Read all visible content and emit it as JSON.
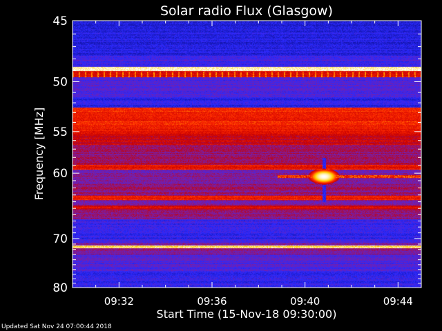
{
  "chart_data": {
    "type": "heatmap",
    "title": "Solar radio Flux (Glasgow)",
    "xlabel": "Start Time (15-Nov-18 09:30:00)",
    "ylabel": "Frequency [MHz]",
    "x_ticks": [
      "09:32",
      "09:36",
      "09:40",
      "09:44"
    ],
    "x_tick_minutes": [
      2,
      6,
      10,
      14
    ],
    "x_range_minutes": [
      0,
      15
    ],
    "y_ticks": [
      45,
      50,
      55,
      60,
      70,
      80
    ],
    "y_range_mhz": [
      45,
      80
    ],
    "y_scale": "reciprocal",
    "colormap": [
      "#10109a",
      "#2a2aff",
      "#7a1fa8",
      "#c80000",
      "#ff2a00",
      "#ffd000",
      "#ffffff"
    ],
    "background_level": 0.28,
    "bands": [
      {
        "f1": 45.0,
        "f2": 45.6,
        "level": 0.08
      },
      {
        "f1": 45.6,
        "f2": 47.8,
        "level": 0.12
      },
      {
        "f1": 47.8,
        "f2": 48.7,
        "level": 0.22
      },
      {
        "f1": 48.7,
        "f2": 49.1,
        "level": 0.95
      },
      {
        "f1": 49.1,
        "f2": 49.6,
        "level": 0.55
      },
      {
        "f1": 49.6,
        "f2": 51.5,
        "level": 0.24
      },
      {
        "f1": 51.5,
        "f2": 52.5,
        "level": 0.15
      },
      {
        "f1": 52.5,
        "f2": 55.3,
        "level": 0.62
      },
      {
        "f1": 55.3,
        "f2": 56.5,
        "level": 0.5
      },
      {
        "f1": 56.5,
        "f2": 59.0,
        "level": 0.4
      },
      {
        "f1": 59.0,
        "f2": 59.6,
        "level": 0.6
      },
      {
        "f1": 59.6,
        "f2": 61.5,
        "level": 0.32
      },
      {
        "f1": 61.5,
        "f2": 63.2,
        "level": 0.38
      },
      {
        "f1": 63.2,
        "f2": 63.8,
        "level": 0.6
      },
      {
        "f1": 63.8,
        "f2": 64.6,
        "level": 0.35
      },
      {
        "f1": 64.6,
        "f2": 65.2,
        "level": 0.55
      },
      {
        "f1": 65.2,
        "f2": 66.8,
        "level": 0.38
      },
      {
        "f1": 66.8,
        "f2": 70.8,
        "level": 0.18
      },
      {
        "f1": 70.8,
        "f2": 71.3,
        "level": 0.3
      },
      {
        "f1": 71.3,
        "f2": 71.8,
        "level": 0.9
      },
      {
        "f1": 71.8,
        "f2": 73.0,
        "level": 0.36
      },
      {
        "f1": 73.0,
        "f2": 76.5,
        "level": 0.25
      },
      {
        "f1": 76.5,
        "f2": 80.0,
        "level": 0.18
      }
    ],
    "burst": {
      "time_min": 10.8,
      "freq_mhz": 60.4,
      "level": 1.0,
      "width_min": 0.5,
      "height_mhz": 0.8
    },
    "burst_trail": {
      "f1": 60.2,
      "f2": 60.6,
      "t1": 8.8,
      "t2": 15.0,
      "level": 0.65
    },
    "burst_column": {
      "time_min": 10.8,
      "f1": 58.0,
      "f2": 64.0,
      "level": 0.1
    }
  },
  "footer": {
    "updated": "Updated Sat Nov 24 07:00:44 2018"
  }
}
